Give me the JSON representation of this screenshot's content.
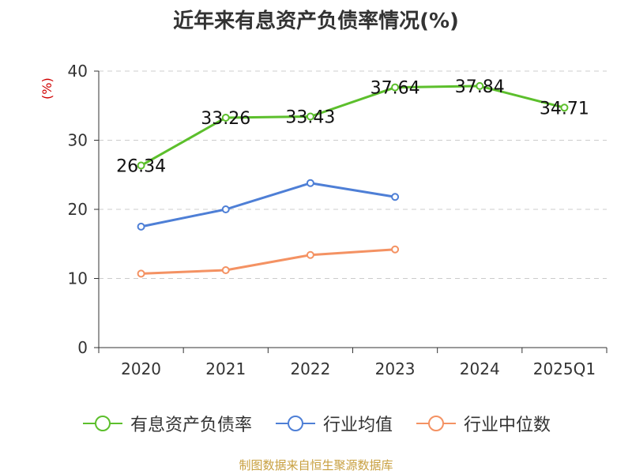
{
  "colors": {
    "debt_ratio": "#5cbf2c",
    "industry_mean": "#4e7fd6",
    "industry_median": "#f49263",
    "grid": "#cccccc",
    "axis": "#333333",
    "source": "#c8a040"
  },
  "source_text": "制图数据来自恒生聚源数据库",
  "chart_data": {
    "type": "line",
    "title": "近年来有息资产负债率情况(%)",
    "ylabel": "(%)",
    "xlabel": "",
    "ylim": [
      0,
      40
    ],
    "yticks": [
      0,
      10,
      20,
      30,
      40
    ],
    "grid": true,
    "legend_position": "bottom",
    "categories": [
      "2020",
      "2021",
      "2022",
      "2023",
      "2024",
      "2025Q1"
    ],
    "series": [
      {
        "name": "有息资产负债率",
        "color_key": "debt_ratio",
        "values": [
          26.34,
          33.26,
          33.43,
          37.64,
          37.84,
          34.71
        ],
        "labels": [
          "26.34",
          "33.26",
          "33.43",
          "37.64",
          "37.84",
          "34.71"
        ]
      },
      {
        "name": "行业均值",
        "color_key": "industry_mean",
        "values": [
          17.5,
          20.0,
          23.8,
          21.8,
          null,
          null
        ],
        "labels": []
      },
      {
        "name": "行业中位数",
        "color_key": "industry_median",
        "values": [
          10.7,
          11.2,
          13.4,
          14.2,
          null,
          null
        ],
        "labels": []
      }
    ]
  }
}
